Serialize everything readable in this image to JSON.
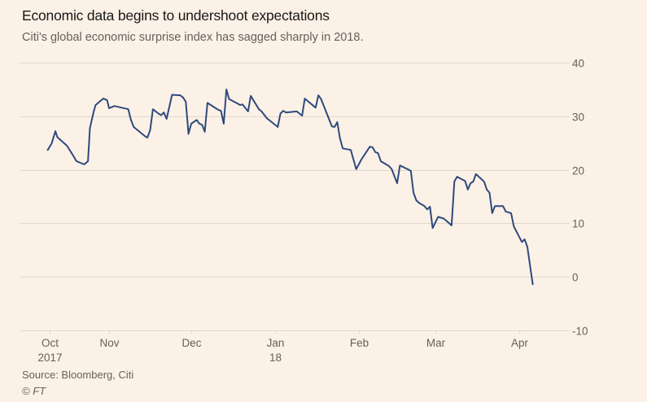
{
  "chart_data": {
    "type": "line",
    "title": "Economic data begins to undershoot expectations",
    "subtitle": "Citi's global economic surprise index has sagged sharply in 2018.",
    "xlabel": "",
    "ylabel": "",
    "ylim": [
      -10,
      40
    ],
    "yticks": [
      40,
      30,
      20,
      10,
      0,
      -10
    ],
    "ytick_labels": [
      "40",
      "30",
      "20",
      "10",
      "0",
      "-10"
    ],
    "xticks": [
      {
        "date": "2017-10-01",
        "label": "Oct",
        "sublabel": "2017"
      },
      {
        "date": "2017-11-01",
        "label": "Nov",
        "sublabel": ""
      },
      {
        "date": "2017-12-01",
        "label": "Dec",
        "sublabel": ""
      },
      {
        "date": "2018-01-01",
        "label": "Jan",
        "sublabel": "18"
      },
      {
        "date": "2018-02-01",
        "label": "Feb",
        "sublabel": ""
      },
      {
        "date": "2018-03-01",
        "label": "Mar",
        "sublabel": ""
      },
      {
        "date": "2018-04-01",
        "label": "Apr",
        "sublabel": ""
      }
    ],
    "grid": true,
    "yaxis_position": "right",
    "series": [
      {
        "name": "Citi global economic surprise index",
        "color": "#2e4a7d",
        "points": [
          [
            "2017-09-30",
            23.7
          ],
          [
            "2017-10-02",
            24.9
          ],
          [
            "2017-10-04",
            27.2
          ],
          [
            "2017-10-05",
            26.1
          ],
          [
            "2017-10-10",
            24.5
          ],
          [
            "2017-10-13",
            22.8
          ],
          [
            "2017-10-15",
            21.6
          ],
          [
            "2017-10-19",
            21.0
          ],
          [
            "2017-10-21",
            21.6
          ],
          [
            "2017-10-22",
            27.8
          ],
          [
            "2017-10-24",
            30.9
          ],
          [
            "2017-10-25",
            32.1
          ],
          [
            "2017-10-29",
            33.3
          ],
          [
            "2017-10-31",
            33.0
          ],
          [
            "2017-11-01",
            31.5
          ],
          [
            "2017-11-03",
            31.9
          ],
          [
            "2017-11-08",
            31.3
          ],
          [
            "2017-11-09",
            29.3
          ],
          [
            "2017-11-10",
            28.0
          ],
          [
            "2017-11-14",
            26.3
          ],
          [
            "2017-11-15",
            26.0
          ],
          [
            "2017-11-16",
            27.4
          ],
          [
            "2017-11-17",
            31.3
          ],
          [
            "2017-11-19",
            30.5
          ],
          [
            "2017-11-20",
            30.2
          ],
          [
            "2017-11-21",
            30.7
          ],
          [
            "2017-11-22",
            29.5
          ],
          [
            "2017-11-24",
            34.0
          ],
          [
            "2017-11-27",
            33.9
          ],
          [
            "2017-11-28",
            33.5
          ],
          [
            "2017-11-29",
            32.7
          ],
          [
            "2017-11-30",
            26.7
          ],
          [
            "2017-12-01",
            28.6
          ],
          [
            "2017-12-03",
            29.3
          ],
          [
            "2017-12-04",
            28.6
          ],
          [
            "2017-12-05",
            28.4
          ],
          [
            "2017-12-06",
            27.1
          ],
          [
            "2017-12-07",
            32.5
          ],
          [
            "2017-12-10",
            31.5
          ],
          [
            "2017-12-11",
            31.2
          ],
          [
            "2017-12-12",
            31.0
          ],
          [
            "2017-12-13",
            28.6
          ],
          [
            "2017-12-14",
            35.0
          ],
          [
            "2017-12-15",
            33.2
          ],
          [
            "2017-12-18",
            32.4
          ],
          [
            "2017-12-19",
            32.1
          ],
          [
            "2017-12-20",
            32.2
          ],
          [
            "2017-12-21",
            31.5
          ],
          [
            "2017-12-22",
            30.9
          ],
          [
            "2017-12-23",
            33.8
          ],
          [
            "2017-12-26",
            31.3
          ],
          [
            "2017-12-27",
            30.9
          ],
          [
            "2017-12-29",
            29.6
          ],
          [
            "2018-01-02",
            28.0
          ],
          [
            "2018-01-03",
            30.5
          ],
          [
            "2018-01-04",
            31.0
          ],
          [
            "2018-01-05",
            30.7
          ],
          [
            "2018-01-09",
            30.9
          ],
          [
            "2018-01-11",
            30.1
          ],
          [
            "2018-01-12",
            33.3
          ],
          [
            "2018-01-16",
            31.6
          ],
          [
            "2018-01-17",
            33.9
          ],
          [
            "2018-01-18",
            33.2
          ],
          [
            "2018-01-22",
            28.1
          ],
          [
            "2018-01-23",
            28.0
          ],
          [
            "2018-01-24",
            28.9
          ],
          [
            "2018-01-25",
            25.9
          ],
          [
            "2018-01-26",
            24.0
          ],
          [
            "2018-01-29",
            23.7
          ],
          [
            "2018-01-31",
            20.1
          ],
          [
            "2018-02-02",
            22.0
          ],
          [
            "2018-02-05",
            24.3
          ],
          [
            "2018-02-06",
            24.2
          ],
          [
            "2018-02-07",
            23.3
          ],
          [
            "2018-02-08",
            23.1
          ],
          [
            "2018-02-09",
            21.6
          ],
          [
            "2018-02-12",
            20.7
          ],
          [
            "2018-02-13",
            20.1
          ],
          [
            "2018-02-15",
            17.5
          ],
          [
            "2018-02-16",
            20.8
          ],
          [
            "2018-02-20",
            19.8
          ],
          [
            "2018-02-21",
            15.7
          ],
          [
            "2018-02-22",
            14.3
          ],
          [
            "2018-02-23",
            13.8
          ],
          [
            "2018-02-25",
            13.2
          ],
          [
            "2018-02-26",
            12.6
          ],
          [
            "2018-02-27",
            13.1
          ],
          [
            "2018-02-28",
            9.1
          ],
          [
            "2018-03-02",
            11.2
          ],
          [
            "2018-03-04",
            10.9
          ],
          [
            "2018-03-05",
            10.5
          ],
          [
            "2018-03-07",
            9.6
          ],
          [
            "2018-03-08",
            17.8
          ],
          [
            "2018-03-09",
            18.7
          ],
          [
            "2018-03-12",
            17.9
          ],
          [
            "2018-03-13",
            16.3
          ],
          [
            "2018-03-14",
            17.5
          ],
          [
            "2018-03-15",
            17.8
          ],
          [
            "2018-03-16",
            19.2
          ],
          [
            "2018-03-19",
            17.8
          ],
          [
            "2018-03-20",
            16.3
          ],
          [
            "2018-03-21",
            15.7
          ],
          [
            "2018-03-22",
            11.9
          ],
          [
            "2018-03-23",
            13.2
          ],
          [
            "2018-03-26",
            13.2
          ],
          [
            "2018-03-27",
            12.2
          ],
          [
            "2018-03-29",
            11.9
          ],
          [
            "2018-03-30",
            9.4
          ],
          [
            "2018-04-02",
            6.5
          ],
          [
            "2018-04-03",
            7.0
          ],
          [
            "2018-04-04",
            5.6
          ],
          [
            "2018-04-06",
            -1.4
          ]
        ]
      }
    ]
  },
  "footer": {
    "source": "Source: Bloomberg, Citi",
    "copyright": "© FT"
  },
  "colors": {
    "background": "#fcf1e6",
    "line": "#2e4a7d",
    "grid": "#e3d8cd",
    "text_muted": "#66605c"
  }
}
